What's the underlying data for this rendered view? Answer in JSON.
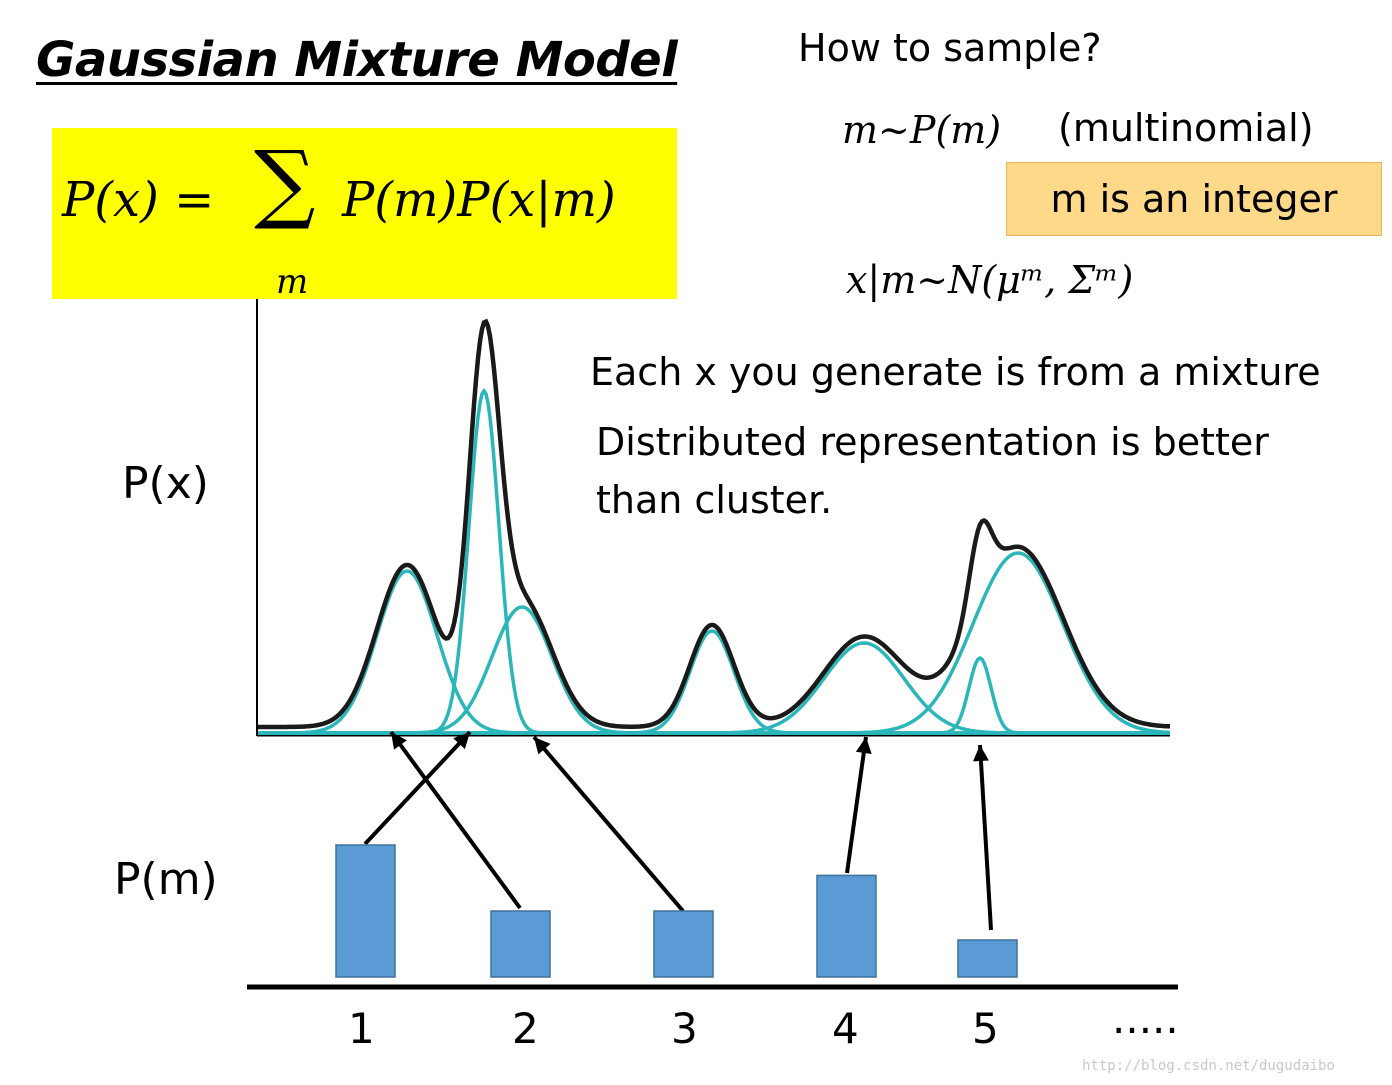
{
  "title": "Gaussian Mixture Model",
  "formula": {
    "lhs": "P(x) =",
    "sum_symbol": "∑",
    "sum_index": "m",
    "rhs": "P(m)P(x|m)"
  },
  "sampling": {
    "heading": "How to sample?",
    "m_step": "m~P(m)",
    "m_step_note": "(multinomial)",
    "m_integer_note": "m is an integer",
    "x_step": "x|m~N(μᵐ, Σᵐ)"
  },
  "notes": {
    "mixture": "Each x you generate is from a mixture",
    "distributed_1": "Distributed representation is better",
    "distributed_2": "than cluster."
  },
  "axis_labels": {
    "px": "P(x)",
    "pm": "P(m)"
  },
  "pm_bars": {
    "categories": [
      "1",
      "2",
      "3",
      "4",
      "5"
    ],
    "values": [
      1.0,
      0.5,
      0.5,
      0.77,
      0.28
    ],
    "more": "....."
  },
  "colors": {
    "highlight": "#ffff00",
    "note_box": "#ffd98a",
    "bar": "#5b9bd5",
    "component_curve": "#2bb7b9",
    "mixture_curve": "#1a1a1a"
  },
  "watermark": "http://blog.csdn.net/dugudaibo"
}
